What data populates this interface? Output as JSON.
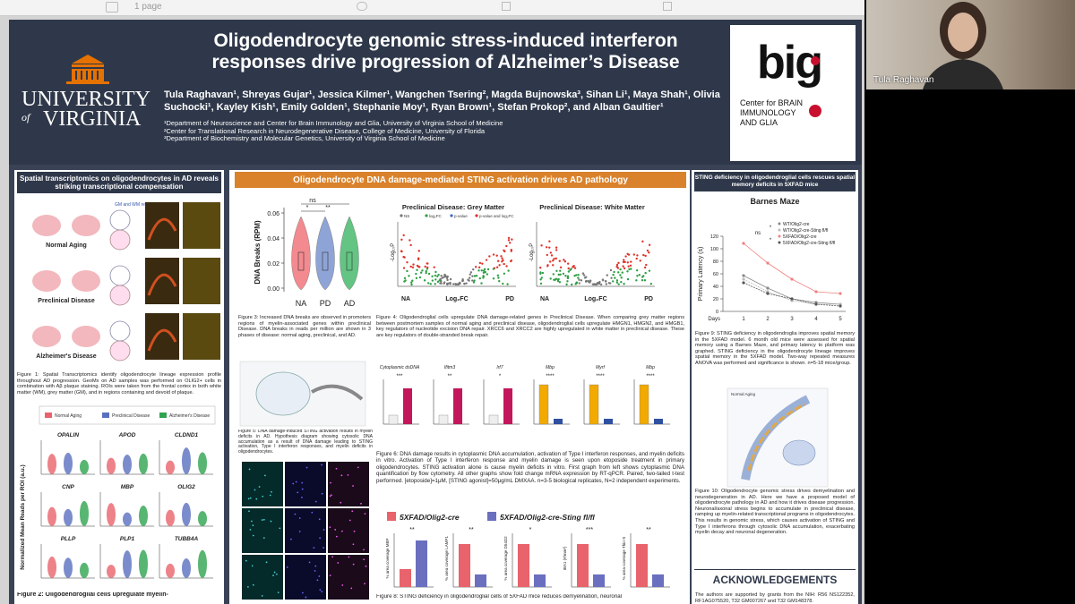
{
  "toolbar": {
    "page_label": "1 page"
  },
  "participant": {
    "name": "Tula Raghavan"
  },
  "poster": {
    "title": "Oligodendrocyte genomic stress-induced interferon responses drive progression of Alzheimer’s Disease",
    "authors": "Tula Raghavan¹, Shreyas Gujar¹, Jessica Kilmer¹, Wangchen Tsering², Magda Bujnowska³, Sihan Li¹, Maya Shah¹, Olivia Suchocki¹, Kayley Kish¹, Emily Golden¹, Stephanie Moy¹, Ryan Brown¹, Stefan Prokop², and Alban Gaultier¹",
    "affiliations": [
      "¹Department of Neuroscience and Center for Brain Immunology and Glia, University of Virginia School of Medicine",
      "²Center for Translational Research in Neurodegenerative Disease, College of Medicine, University of Florida",
      "³Department of Biochemistry and Molecular Genetics, University of Virginia School of Medicine"
    ],
    "logo_left": {
      "line1": "UNIVERSITY",
      "line2": "VIRGINIA",
      "of": "of"
    },
    "logo_right": {
      "mark": "big",
      "subtitle": "Center for BRAIN IMMUNOLOGY AND GLIA"
    }
  },
  "left_panel": {
    "heading": "Spatial transcriptomics on oligodendrocytes in AD reveals striking transcriptional compensation",
    "stages": [
      "Normal Aging",
      "Preclinical Disease",
      "Alzheimer's Disease"
    ],
    "roi_label": "GM and WM regions",
    "fig1_caption": "Figure 1: Spatial Transcriptomics identify oligodendrocyte lineage expression profile throughout AD progression. GeoMx on AD samples was performed on OLIG2+ cells in combination with Aβ plaque staining. ROIs were taken from the frontal cortex in both white matter (WM), grey matter (GM), and in regions containing and devoid of plaque.",
    "legend": [
      "Normal Aging",
      "Preclinical Disease",
      "Alzheimer's Disease"
    ],
    "genes": [
      "OPALIN",
      "APOD",
      "CLDND1",
      "CNP",
      "MBP",
      "OLIG2",
      "PLLP",
      "PLP1",
      "TUBB4A"
    ],
    "y_label": "Normalized Mean Reads per ROI (a.u.)",
    "fig2_caption": "Figure 2: Oligodendroglial cells upregulate myelin-"
  },
  "middle_panel": {
    "heading": "Oligodendrocyte DNA damage-mediated STING activation drives AD pathology",
    "fig3": {
      "y_label": "DNA Breaks (RPM)",
      "yticks": [
        "0.06",
        "0.04",
        "0.02",
        "0.00"
      ],
      "categories": [
        "NA",
        "PD",
        "AD"
      ],
      "significance": [
        "ns",
        "*",
        "**"
      ],
      "caption": "Figure 3: Increased DNA breaks are observed in promoters regions of myelin-associated genes within preclinical Disease. DNA breaks in reads per million are shown in 3 phases of disease: normal aging, preclinical, and AD."
    },
    "fig4": {
      "titles": [
        "Preclinical Disease: Grey Matter",
        "Preclinical Disease: White Matter"
      ],
      "legend": [
        "NS",
        "log₂FC",
        "p-value",
        "p-value and log₂FC"
      ],
      "y_label": "-Log₁₀P",
      "x_left": "NA",
      "x_mid": "Log₂FC",
      "x_right": "PD",
      "caption": "Figure 4: Oligodendroglial cells upregulate DNA damage-related genes in Preclinical Disease. When comparing grey matter regions between postmortem samples of normal aging and preclinical disease, oligodendroglial cells upregulate HMGN1, HMGN2, and HMGB1, key regulators of nucleotide excision DNA repair. XRCC6 and XRCC2 are highly upregulated in white matter in preclinical disease. These are key regulators of double-stranded break repair."
    },
    "fig5_caption": "Figure 5: DNA damage-induced STING activation results in myelin deficits in AD. Hypothesis diagram showing cytosolic DNA accumulation as a result of DNA damage leading to STING activation, Type I interferon responses, and myelin deficits in oligodendrocytes.",
    "fig6": {
      "panels": [
        "Cytoplasmic dsDNA",
        "Ifitm3",
        "Irf7",
        "Mbp",
        "Myrf",
        "Mbp"
      ],
      "significance": [
        "***",
        "**",
        "*",
        "****",
        "****",
        "****"
      ],
      "caption": "Figure 6: DNA damage results in cytoplasmic DNA accumulation, activation of Type I interferon responses, and myelin deficits in vitro. Activation of Type I interferon response and myelin damage is seen upon etoposide treatment in primary oligodendrocytes. STING activation alone is cause myelin deficits in vitro. First graph from left shows cytoplasmic DNA quantification by flow cytometry. All other graphs show fold change mRNA expression by RT-qPCR. Paired, two-tailed t-test performed. [etoposide]=1μM, [STING agonist]=50μg/mL DMXAA. n=3-5 biological replicates, N=2 independent experiments."
    },
    "fig8": {
      "legend": [
        "5XFAD/Olig2-cre",
        "5XFAD/Olig2-cre-Sting fl/fl"
      ],
      "panels": [
        "% area coverage MBP",
        "% area coverage LAMP1",
        "% area coverage D54D2",
        "IBA1 (#/mm²)",
        "% area coverage Thio-S"
      ],
      "significance": [
        "**",
        "**",
        "*",
        "***",
        "**"
      ],
      "caption": "Figure 8: STING deficiency in oligodendroglial cells of 5XFAD mice reduces demyelination, neuronal"
    }
  },
  "right_panel": {
    "heading": "STING deficiency in oligodendroglial cells rescues spatial memory deficits in 5XFAD mice",
    "chart_title": "Barnes Maze",
    "y_label": "Primary Latency (s)",
    "x_label": "Days",
    "yticks": [
      "0",
      "20",
      "40",
      "60",
      "80",
      "100",
      "120"
    ],
    "xticks": [
      "1",
      "2",
      "3",
      "4",
      "5"
    ],
    "legend": [
      "WT/Olig2-cre",
      "WT/Olig2-cre-Sting fl/fl",
      "5XFAD/Olig2-cre",
      "5XFAD/Olig2-cre-Sting fl/fl"
    ],
    "significance": [
      "ns",
      "*",
      "*"
    ],
    "fig9_caption": "Figure 9: STING deficiency in oligodendroglia improves spatial memory in the 5XFAD model. 6 month old mice were assessed for spatial memory using a Barnes Maze, and primary latency to platform was graphed. STING deficiency in the oligodendrocyte lineage improves spatial memory in the 5XFAD model. Two-way repeated measures ANOVA was performed and significance is shown. n=5-18 mice/group.",
    "diagram_label": "Normal Aging",
    "fig10_caption": "Figure 10: Oligodendrocyte genomic stress drives demyelination and neurodegeneration in AD. Here we have a proposed model of oligodendrocyte pathology in AD and how it drives disease progression. Neuronal/axonal stress begins to accumulate in preclinical disease, ramping up myelin-related transcriptional programs in oligodendrocytes. This results in genomic stress, which causes activation of STING and Type I interferons through cytosolic DNA accumulation, exacerbating myelin decay and neuronal degeneration.",
    "ack_heading": "ACKNOWLEDGEMENTS",
    "ack_text": "The authors are supported by grants from the NIH: R56 NS122352, RF1AG075520, T32 GM007267 and T32 GM148378."
  }
}
